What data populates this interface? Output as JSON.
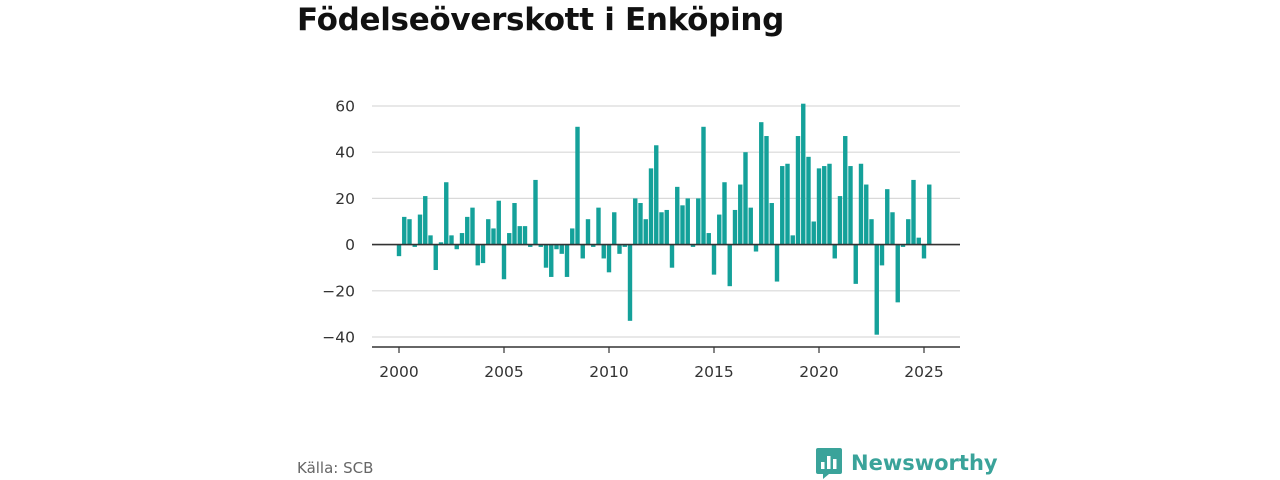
{
  "title": "Födelseöverskott i Enköping",
  "source": "Källa: SCB",
  "brand": {
    "name": "Newsworthy",
    "icon": "chart-logo-icon",
    "color": "#3aa39a"
  },
  "colors": {
    "bar": "#14a19a",
    "grid": "#d9d9d9",
    "axis": "#333333"
  },
  "chart_data": {
    "type": "bar",
    "title": "Födelseöverskott i Enköping",
    "xlabel": "",
    "ylabel": "",
    "grid": true,
    "x_ticks": [
      2000,
      2005,
      2010,
      2015,
      2020,
      2025
    ],
    "y_ticks": [
      -40,
      -20,
      0,
      20,
      40,
      60
    ],
    "xlim": [
      2000.0,
      2026.0
    ],
    "ylim": [
      -44,
      63
    ],
    "series": [
      {
        "x": [
          2000.0,
          2000.25,
          2000.5,
          2000.75,
          2001.0,
          2001.25,
          2001.5,
          2001.75,
          2002.0,
          2002.25,
          2002.5,
          2002.75,
          2003.0,
          2003.25,
          2003.5,
          2003.75,
          2004.0,
          2004.25,
          2004.5,
          2004.75,
          2005.0,
          2005.25,
          2005.5,
          2005.75,
          2006.0,
          2006.25,
          2006.5,
          2006.75,
          2007.0,
          2007.25,
          2007.5,
          2007.75,
          2008.0,
          2008.25,
          2008.5,
          2008.75,
          2009.0,
          2009.25,
          2009.5,
          2009.75,
          2010.0,
          2010.25,
          2010.5,
          2010.75,
          2011.0,
          2011.25,
          2011.5,
          2011.75,
          2012.0,
          2012.25,
          2012.5,
          2012.75,
          2013.0,
          2013.25,
          2013.5,
          2013.75,
          2014.0,
          2014.25,
          2014.5,
          2014.75,
          2015.0,
          2015.25,
          2015.5,
          2015.75,
          2016.0,
          2016.25,
          2016.5,
          2016.75,
          2017.0,
          2017.25,
          2017.5,
          2017.75,
          2018.0,
          2018.25,
          2018.5,
          2018.75,
          2019.0,
          2019.25,
          2019.5,
          2019.75,
          2020.0,
          2020.25,
          2020.5,
          2020.75,
          2021.0,
          2021.25,
          2021.5,
          2021.75,
          2022.0,
          2022.25,
          2022.5,
          2022.75,
          2023.0,
          2023.25,
          2023.5,
          2023.75,
          2024.0,
          2024.25,
          2024.5,
          2024.75,
          2025.0,
          2025.25
        ],
        "values": [
          -5,
          12,
          11,
          -1,
          13,
          21,
          4,
          -11,
          1,
          27,
          4,
          -2,
          5,
          12,
          16,
          -9,
          -8,
          11,
          7,
          19,
          -15,
          5,
          18,
          8,
          8,
          -1,
          28,
          -1,
          -10,
          -14,
          -2,
          -4,
          -14,
          7,
          51,
          -6,
          11,
          -1,
          16,
          -6,
          -12,
          14,
          -4,
          -1,
          -33,
          20,
          18,
          11,
          33,
          43,
          14,
          15,
          -10,
          25,
          17,
          20,
          -1,
          20,
          51,
          5,
          -13,
          13,
          27,
          -18,
          15,
          26,
          40,
          16,
          -3,
          53,
          47,
          18,
          -16,
          34,
          35,
          4,
          47,
          61,
          38,
          10,
          33,
          34,
          35,
          -6,
          21,
          47,
          34,
          -17,
          35,
          26,
          11,
          -39,
          -9,
          24,
          14,
          -25,
          -1,
          11,
          28,
          3,
          -6,
          26
        ]
      }
    ]
  }
}
